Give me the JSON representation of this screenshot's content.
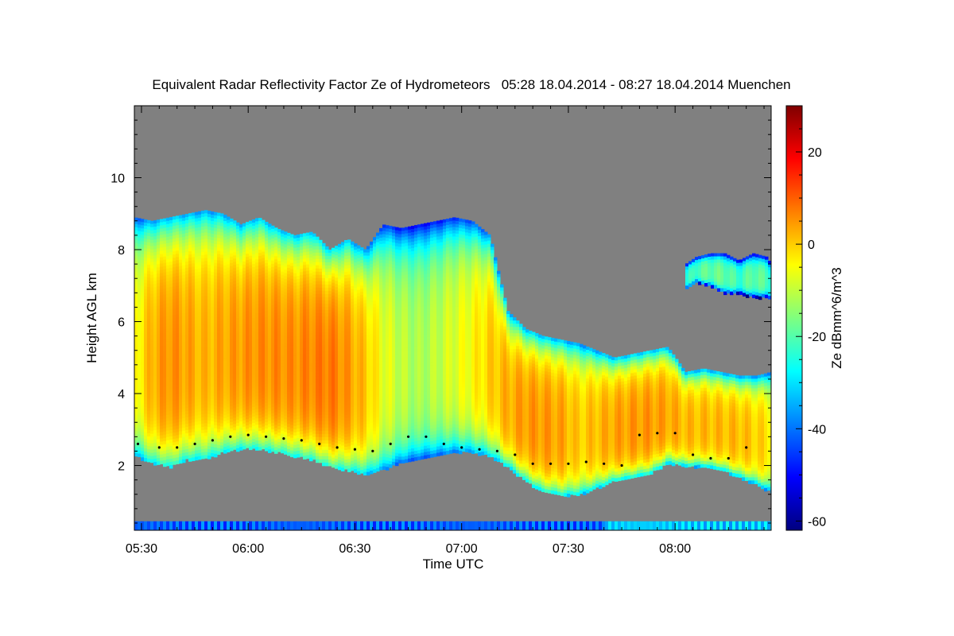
{
  "chart_data": {
    "type": "heatmap",
    "title": "Equivalent Radar Reflectivity Factor Ze of Hydrometeors   05:28 18.04.2014 - 08:27 18.04.2014 Muenchen",
    "xlabel": "Time UTC",
    "ylabel": "Height AGL km",
    "colorbar_label": "Ze dBmm^6/m^3",
    "xlim_minutes_utc": [
      328,
      507
    ],
    "ylim_km": [
      0.2,
      12
    ],
    "clim_dbz": [
      -62,
      30
    ],
    "x_ticks": [
      {
        "minute": 330,
        "label": "05:30"
      },
      {
        "minute": 360,
        "label": "06:00"
      },
      {
        "minute": 390,
        "label": "06:30"
      },
      {
        "minute": 420,
        "label": "07:00"
      },
      {
        "minute": 450,
        "label": "07:30"
      },
      {
        "minute": 480,
        "label": "08:00"
      }
    ],
    "y_ticks": [
      {
        "value": 2,
        "label": "2"
      },
      {
        "value": 4,
        "label": "4"
      },
      {
        "value": 6,
        "label": "6"
      },
      {
        "value": 8,
        "label": "8"
      },
      {
        "value": 10,
        "label": "10"
      }
    ],
    "colorbar_ticks": [
      {
        "value": -60,
        "label": "-60"
      },
      {
        "value": -40,
        "label": "-40"
      },
      {
        "value": -20,
        "label": "-20"
      },
      {
        "value": 0,
        "label": "0"
      },
      {
        "value": 20,
        "label": "20"
      }
    ],
    "colormap": [
      "#00007f",
      "#0000ff",
      "#007fff",
      "#00ffff",
      "#7fff7f",
      "#ffff00",
      "#ff7f00",
      "#ff0000",
      "#7f0000"
    ],
    "missing_color": "#808080",
    "cloud_layers": [
      {
        "name": "main-cloud",
        "time": [
          328,
          333,
          338,
          343,
          348,
          353,
          358,
          363,
          368,
          373,
          378,
          383,
          388,
          393,
          398,
          403,
          408,
          413,
          418,
          423,
          428,
          433,
          438,
          443,
          448,
          453,
          458,
          463,
          468,
          473,
          478,
          483,
          488,
          493,
          498,
          503,
          507
        ],
        "top_km": [
          8.9,
          8.8,
          8.9,
          9.0,
          9.1,
          9.0,
          8.7,
          8.9,
          8.6,
          8.4,
          8.5,
          8.0,
          8.3,
          8.0,
          8.7,
          8.6,
          8.7,
          8.8,
          8.9,
          8.8,
          8.4,
          6.3,
          5.8,
          5.6,
          5.5,
          5.4,
          5.2,
          5.0,
          5.1,
          5.2,
          5.3,
          4.6,
          4.7,
          4.6,
          4.5,
          4.5,
          4.6
        ],
        "base_km": [
          2.3,
          2.1,
          2.0,
          2.2,
          2.2,
          2.4,
          2.5,
          2.5,
          2.4,
          2.3,
          2.2,
          2.0,
          1.9,
          1.8,
          1.9,
          2.1,
          2.2,
          2.3,
          2.4,
          2.4,
          2.3,
          2.0,
          1.6,
          1.3,
          1.2,
          1.2,
          1.4,
          1.6,
          1.7,
          1.8,
          2.1,
          2.0,
          2.0,
          1.9,
          1.7,
          1.5,
          1.3
        ],
        "peak_dbz": [
          -5,
          3,
          6,
          4,
          2,
          4,
          5,
          6,
          6,
          6,
          7,
          8,
          5,
          1,
          -6,
          -10,
          -12,
          -10,
          -7,
          -4,
          0,
          3,
          5,
          5,
          4,
          0,
          2,
          4,
          5,
          5,
          4,
          2,
          2,
          2,
          2,
          0,
          -2
        ]
      },
      {
        "name": "upper-cloud",
        "time": [
          483,
          486,
          490,
          494,
          498,
          502,
          506,
          507
        ],
        "top_km": [
          7.6,
          7.8,
          7.9,
          7.9,
          7.7,
          7.9,
          7.8,
          7.6
        ],
        "base_km": [
          6.9,
          7.1,
          7.0,
          6.8,
          6.8,
          6.7,
          6.7,
          6.6
        ],
        "peak_dbz": [
          -25,
          -20,
          -18,
          -18,
          -22,
          -18,
          -20,
          -22
        ]
      }
    ],
    "melting_layer": {
      "time": [
        329,
        335,
        340,
        345,
        350,
        355,
        360,
        365,
        370,
        375,
        380,
        385,
        390,
        395,
        400,
        405,
        410,
        415,
        420,
        425,
        430,
        435,
        440,
        445,
        450,
        455,
        460,
        465,
        470,
        475,
        480,
        485,
        490,
        495,
        500
      ],
      "height_km": [
        2.6,
        2.5,
        2.5,
        2.6,
        2.7,
        2.8,
        2.85,
        2.8,
        2.75,
        2.7,
        2.6,
        2.5,
        2.45,
        2.4,
        2.6,
        2.8,
        2.8,
        2.6,
        2.5,
        2.45,
        2.4,
        2.3,
        2.05,
        2.05,
        2.05,
        2.1,
        2.05,
        2.0,
        2.85,
        2.9,
        2.9,
        2.3,
        2.2,
        2.2,
        2.5
      ]
    }
  }
}
